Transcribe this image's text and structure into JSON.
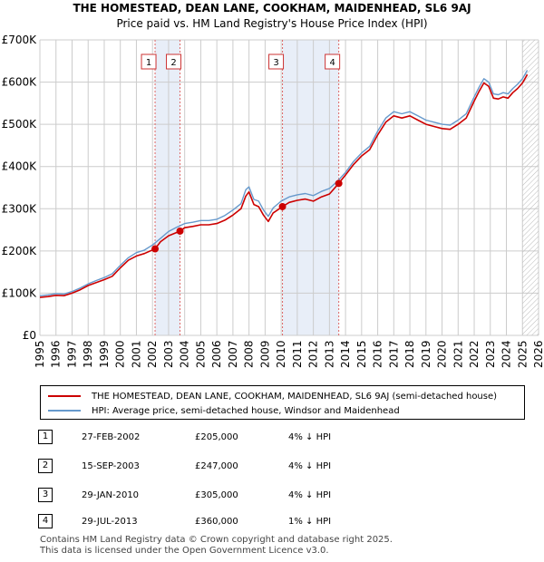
{
  "chart_data": {
    "type": "line",
    "title": "THE HOMESTEAD, DEAN LANE, COOKHAM, MAIDENHEAD, SL6 9AJ",
    "subtitle": "Price paid vs. HM Land Registry's House Price Index (HPI)",
    "xlim": [
      1995,
      2026
    ],
    "ylim": [
      0,
      700000
    ],
    "x_ticks": [
      "1995",
      "1996",
      "1997",
      "1998",
      "1999",
      "2000",
      "2001",
      "2002",
      "2003",
      "2004",
      "2005",
      "2006",
      "2007",
      "2008",
      "2009",
      "2010",
      "2011",
      "2012",
      "2013",
      "2014",
      "2015",
      "2016",
      "2017",
      "2018",
      "2019",
      "2020",
      "2021",
      "2022",
      "2023",
      "2024",
      "2025",
      "2026"
    ],
    "y_ticks": [
      {
        "value": 0,
        "label": "£0"
      },
      {
        "value": 100000,
        "label": "£100K"
      },
      {
        "value": 200000,
        "label": "£200K"
      },
      {
        "value": 300000,
        "label": "£300K"
      },
      {
        "value": 400000,
        "label": "£400K"
      },
      {
        "value": 500000,
        "label": "£500K"
      },
      {
        "value": 600000,
        "label": "£600K"
      },
      {
        "value": 700000,
        "label": "£700K"
      }
    ],
    "forecast_start": 2025.0,
    "series": [
      {
        "name": "THE HOMESTEAD, DEAN LANE, COOKHAM, MAIDENHEAD, SL6 9AJ (semi-detached house)",
        "color": "#cc0000",
        "x": [
          1995.0,
          1995.5,
          1996.0,
          1996.5,
          1997.0,
          1997.5,
          1998.0,
          1998.5,
          1999.0,
          1999.5,
          2000.0,
          2000.5,
          2001.0,
          2001.5,
          2002.16,
          2002.5,
          2003.0,
          2003.71,
          2004.0,
          2004.5,
          2005.0,
          2005.5,
          2006.0,
          2006.5,
          2007.0,
          2007.5,
          2007.8,
          2008.0,
          2008.3,
          2008.6,
          2008.9,
          2009.2,
          2009.5,
          2010.08,
          2010.5,
          2011.0,
          2011.5,
          2012.0,
          2012.5,
          2013.0,
          2013.58,
          2014.0,
          2014.5,
          2015.0,
          2015.5,
          2016.0,
          2016.5,
          2017.0,
          2017.5,
          2018.0,
          2018.5,
          2019.0,
          2019.5,
          2020.0,
          2020.5,
          2021.0,
          2021.5,
          2022.0,
          2022.3,
          2022.6,
          2022.9,
          2023.2,
          2023.5,
          2023.8,
          2024.1,
          2024.4,
          2024.7,
          2025.0,
          2025.3
        ],
        "y": [
          90000,
          92000,
          95000,
          94000,
          100000,
          108000,
          118000,
          125000,
          132000,
          140000,
          160000,
          178000,
          188000,
          194000,
          205000,
          222000,
          236000,
          247000,
          255000,
          258000,
          262000,
          262000,
          265000,
          273000,
          285000,
          300000,
          330000,
          340000,
          310000,
          305000,
          285000,
          270000,
          290000,
          305000,
          315000,
          320000,
          323000,
          318000,
          328000,
          335000,
          360000,
          380000,
          405000,
          425000,
          440000,
          475000,
          505000,
          520000,
          515000,
          520000,
          510000,
          500000,
          495000,
          490000,
          488000,
          500000,
          515000,
          555000,
          578000,
          598000,
          590000,
          562000,
          560000,
          565000,
          562000,
          575000,
          585000,
          598000,
          618000
        ]
      },
      {
        "name": "HPI: Average price, semi-detached house, Windsor and Maidenhead",
        "color": "#6699cc",
        "x": [
          1995.0,
          1995.5,
          1996.0,
          1996.5,
          1997.0,
          1997.5,
          1998.0,
          1998.5,
          1999.0,
          1999.5,
          2000.0,
          2000.5,
          2001.0,
          2001.5,
          2002.0,
          2002.5,
          2003.0,
          2003.5,
          2004.0,
          2004.5,
          2005.0,
          2005.5,
          2006.0,
          2006.5,
          2007.0,
          2007.5,
          2007.8,
          2008.0,
          2008.3,
          2008.6,
          2008.9,
          2009.2,
          2009.5,
          2010.0,
          2010.5,
          2011.0,
          2011.5,
          2012.0,
          2012.5,
          2013.0,
          2013.5,
          2014.0,
          2014.5,
          2015.0,
          2015.5,
          2016.0,
          2016.5,
          2017.0,
          2017.5,
          2018.0,
          2018.5,
          2019.0,
          2019.5,
          2020.0,
          2020.5,
          2021.0,
          2021.5,
          2022.0,
          2022.3,
          2022.6,
          2022.9,
          2023.2,
          2023.5,
          2023.8,
          2024.1,
          2024.4,
          2024.7,
          2025.0,
          2025.3
        ],
        "y": [
          94000,
          96000,
          99000,
          98000,
          104000,
          112000,
          122000,
          130000,
          137000,
          146000,
          166000,
          184000,
          196000,
          202000,
          214000,
          230000,
          246000,
          256000,
          265000,
          268000,
          272000,
          272000,
          275000,
          284000,
          297000,
          312000,
          345000,
          352000,
          322000,
          318000,
          297000,
          282000,
          302000,
          318000,
          328000,
          333000,
          336000,
          331000,
          341000,
          348000,
          365000,
          386000,
          412000,
          432000,
          448000,
          484000,
          515000,
          530000,
          525000,
          530000,
          520000,
          510000,
          505000,
          500000,
          498000,
          510000,
          525000,
          565000,
          588000,
          608000,
          600000,
          572000,
          570000,
          575000,
          572000,
          585000,
          595000,
          608000,
          628000
        ]
      }
    ],
    "transactions": [
      {
        "id": "1",
        "date": "27-FEB-2002",
        "x": 2002.16,
        "price": 205000,
        "price_label": "£205,000",
        "delta": "4% ↓ HPI"
      },
      {
        "id": "2",
        "date": "15-SEP-2003",
        "x": 2003.71,
        "price": 247000,
        "price_label": "£247,000",
        "delta": "4% ↓ HPI"
      },
      {
        "id": "3",
        "date": "29-JAN-2010",
        "x": 2010.08,
        "price": 305000,
        "price_label": "£305,000",
        "delta": "4% ↓ HPI"
      },
      {
        "id": "4",
        "date": "29-JUL-2013",
        "x": 2013.58,
        "price": 360000,
        "price_label": "£360,000",
        "delta": "1% ↓ HPI"
      }
    ]
  },
  "legend": {
    "property_label": "THE HOMESTEAD, DEAN LANE, COOKHAM, MAIDENHEAD, SL6 9AJ (semi-detached house)",
    "hpi_label": "HPI: Average price, semi-detached house, Windsor and Maidenhead"
  },
  "footer": {
    "line1": "Contains HM Land Registry data © Crown copyright and database right 2025.",
    "line2": "This data is licensed under the Open Government Licence v3.0."
  }
}
